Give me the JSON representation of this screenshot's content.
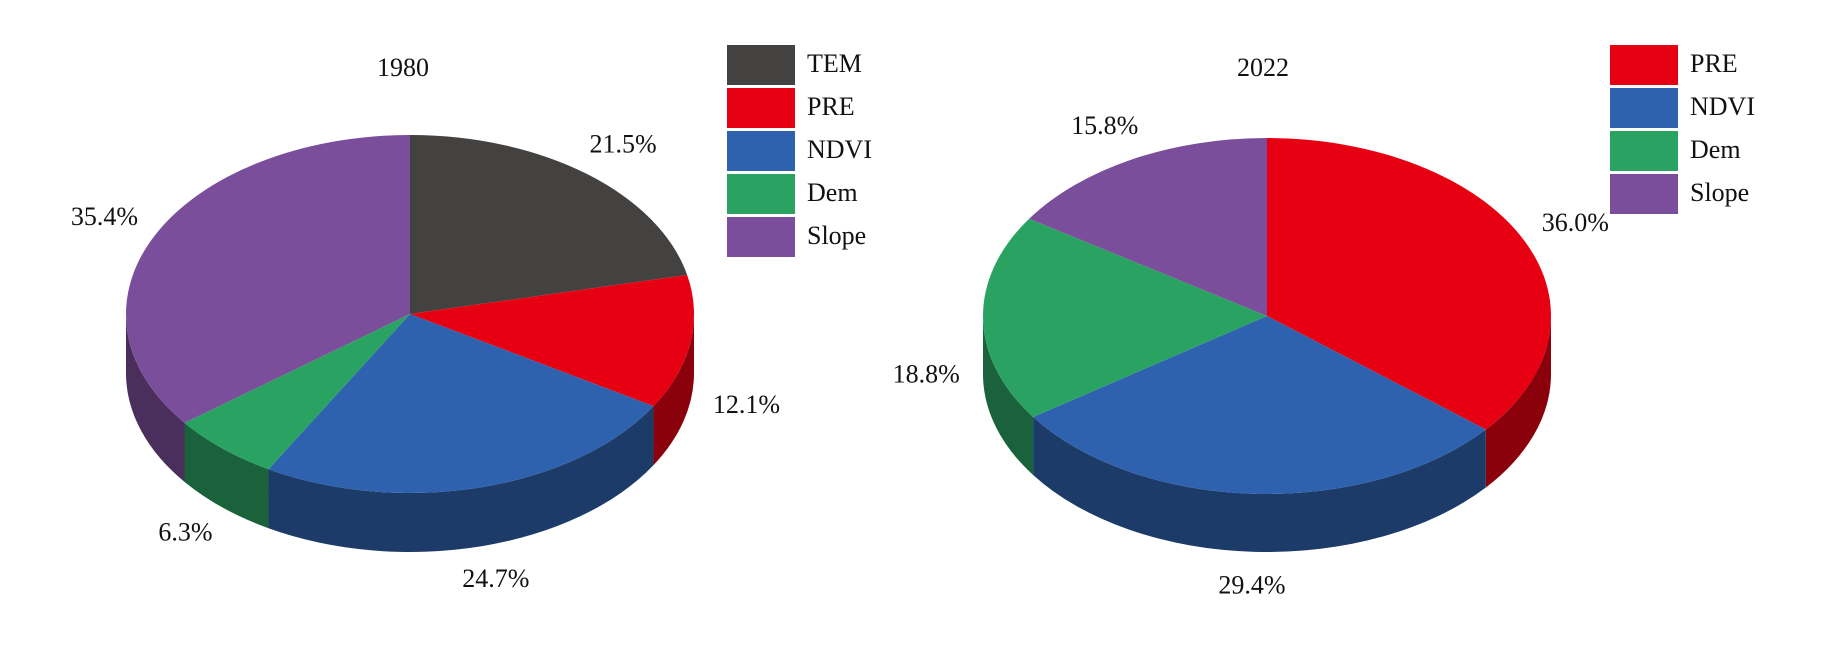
{
  "chart_data": [
    {
      "type": "pie",
      "title": "1980",
      "categories": [
        "TEM",
        "PRE",
        "NDVI",
        "Dem",
        "Slope"
      ],
      "values": [
        21.5,
        12.1,
        24.7,
        6.3,
        35.4
      ],
      "value_labels": [
        "21.5%",
        "12.1%",
        "24.7%",
        "6.3%",
        "35.4%"
      ],
      "colors": [
        "#444240",
        "#e60012",
        "#2e62ae",
        "#2aa362",
        "#7b4e9b"
      ]
    },
    {
      "type": "pie",
      "title": "2022",
      "categories": [
        "PRE",
        "NDVI",
        "Dem",
        "Slope"
      ],
      "values": [
        36.0,
        29.4,
        18.8,
        15.8
      ],
      "value_labels": [
        "36.0%",
        "29.4%",
        "18.8%",
        "15.8%"
      ],
      "colors": [
        "#e60012",
        "#2e62ae",
        "#2aa362",
        "#7b4e9b"
      ]
    }
  ]
}
